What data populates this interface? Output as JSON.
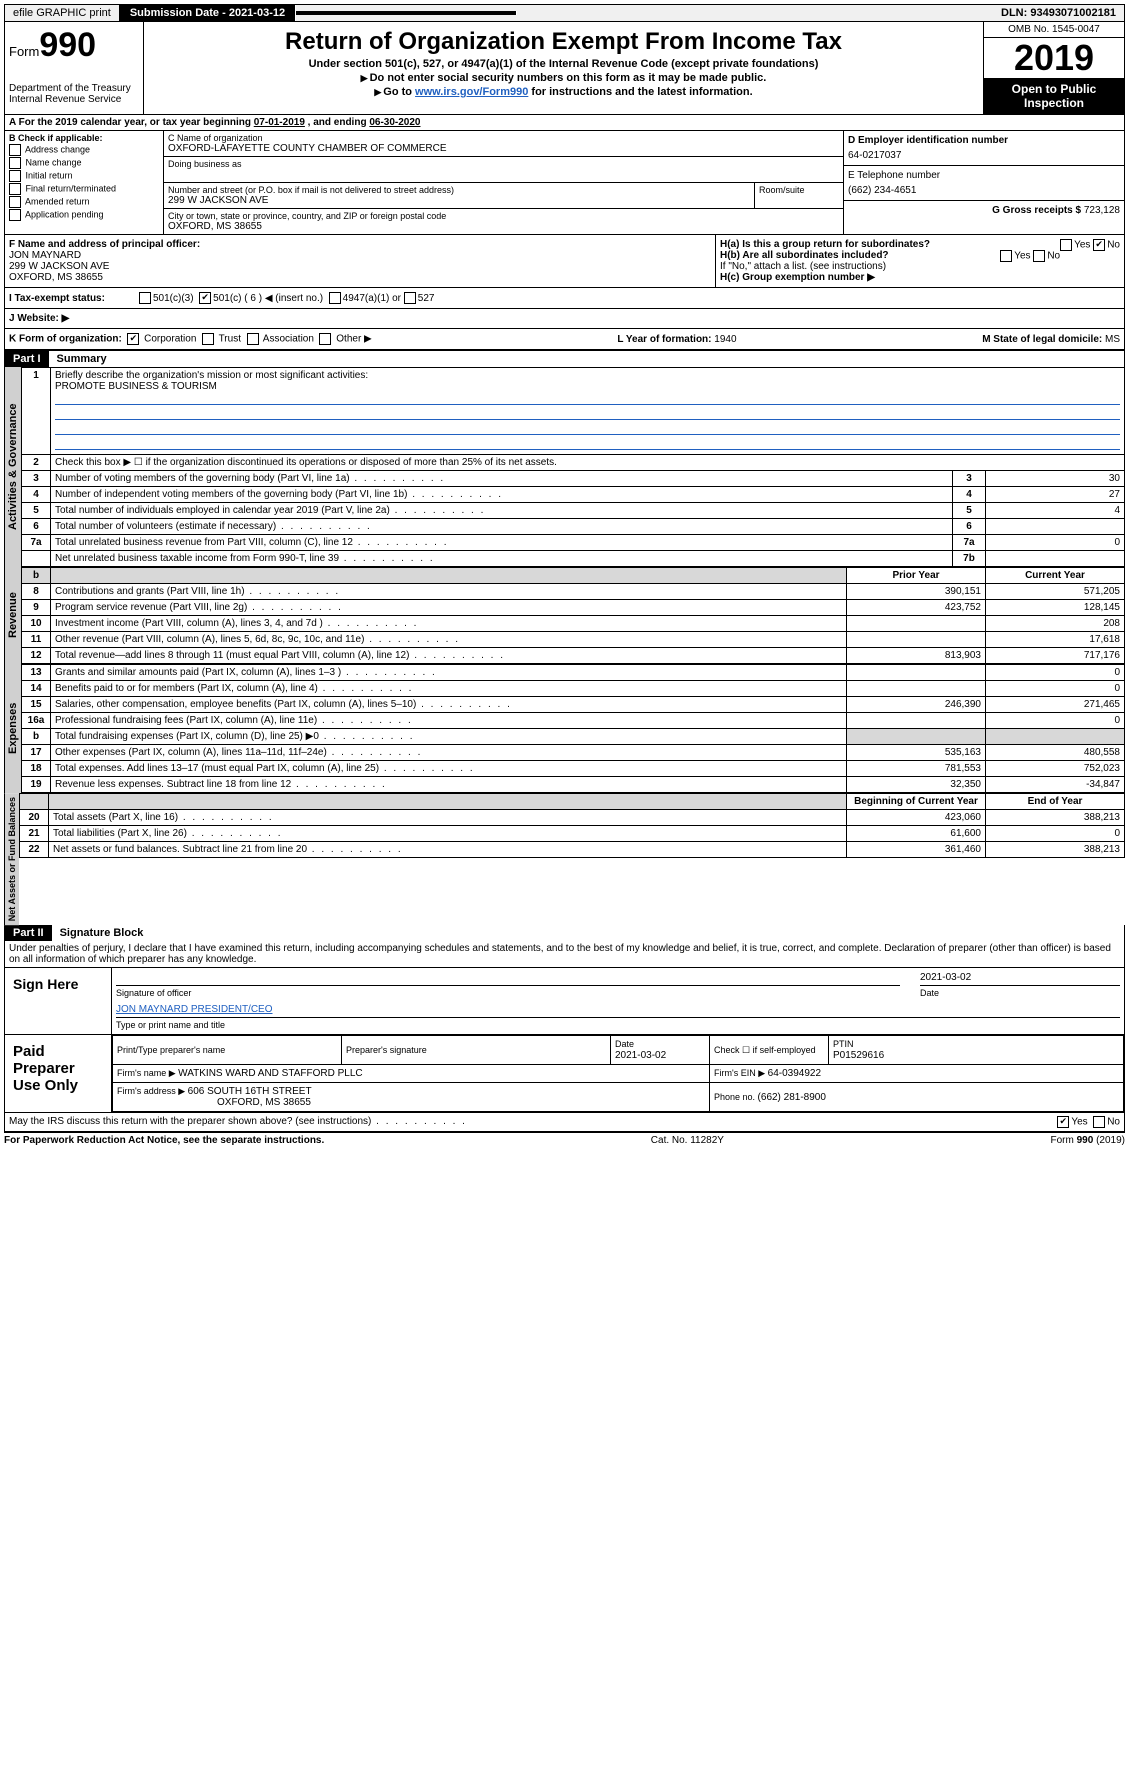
{
  "topbar": {
    "efile": "efile GRAPHIC print",
    "submission_label": "Submission Date - 2021-03-12",
    "dln": "DLN: 93493071002181"
  },
  "header": {
    "form_label": "Form",
    "form_number": "990",
    "title": "Return of Organization Exempt From Income Tax",
    "subtitle": "Under section 501(c), 527, or 4947(a)(1) of the Internal Revenue Code (except private foundations)",
    "warn1": "Do not enter social security numbers on this form as it may be made public.",
    "warn2_pre": "Go to ",
    "warn2_link": "www.irs.gov/Form990",
    "warn2_post": " for instructions and the latest information.",
    "dept": "Department of the Treasury",
    "irs": "Internal Revenue Service",
    "omb": "OMB No. 1545-0047",
    "year": "2019",
    "open": "Open to Public Inspection"
  },
  "period": {
    "label_a": "A For the 2019 calendar year, or tax year beginning ",
    "begin": "07-01-2019",
    "mid": " , and ending ",
    "end": "06-30-2020"
  },
  "block_b": {
    "title": "B Check if applicable:",
    "items": [
      "Address change",
      "Name change",
      "Initial return",
      "Final return/terminated",
      "Amended return",
      "Application pending"
    ]
  },
  "block_c": {
    "name_label": "C Name of organization",
    "name": "OXFORD-LAFAYETTE COUNTY CHAMBER OF COMMERCE",
    "dba_label": "Doing business as",
    "addr_label": "Number and street (or P.O. box if mail is not delivered to street address)",
    "room_label": "Room/suite",
    "addr": "299 W JACKSON AVE",
    "city_label": "City or town, state or province, country, and ZIP or foreign postal code",
    "city": "OXFORD, MS  38655"
  },
  "block_d": {
    "label": "D Employer identification number",
    "value": "64-0217037"
  },
  "block_e": {
    "label": "E Telephone number",
    "value": "(662) 234-4651"
  },
  "block_g": {
    "label": "G Gross receipts $ ",
    "value": "723,128"
  },
  "block_f": {
    "label": "F Name and address of principal officer:",
    "name": "JON MAYNARD",
    "addr": "299 W JACKSON AVE",
    "city": "OXFORD, MS  38655"
  },
  "block_h": {
    "ha": "H(a)  Is this a group return for subordinates?",
    "hb": "H(b)  Are all subordinates included?",
    "hb_note": "If \"No,\" attach a list. (see instructions)",
    "hc": "H(c)  Group exemption number ▶"
  },
  "tax_status": {
    "label": "I    Tax-exempt status:",
    "opt1": "501(c)(3)",
    "opt2": "501(c) ( 6 ) ◀ (insert no.)",
    "opt3": "4947(a)(1) or",
    "opt4": "527"
  },
  "website": {
    "label": "J    Website: ▶"
  },
  "row_k": {
    "k_label": "K Form of organization:",
    "k_corp": "Corporation",
    "k_trust": "Trust",
    "k_assoc": "Association",
    "k_other": "Other ▶",
    "l_label": "L Year of formation: ",
    "l_value": "1940",
    "m_label": "M State of legal domicile: ",
    "m_value": "MS"
  },
  "part1": {
    "header": "Part I",
    "title": "Summary",
    "line1_label": "Briefly describe the organization's mission or most significant activities:",
    "line1_value": "PROMOTE BUSINESS & TOURISM",
    "line2": "Check this box ▶ ☐  if the organization discontinued its operations or disposed of more than 25% of its net assets.",
    "lines_gov": [
      {
        "n": "3",
        "t": "Number of voting members of the governing body (Part VI, line 1a)",
        "b": "3",
        "v": "30"
      },
      {
        "n": "4",
        "t": "Number of independent voting members of the governing body (Part VI, line 1b)",
        "b": "4",
        "v": "27"
      },
      {
        "n": "5",
        "t": "Total number of individuals employed in calendar year 2019 (Part V, line 2a)",
        "b": "5",
        "v": "4"
      },
      {
        "n": "6",
        "t": "Total number of volunteers (estimate if necessary)",
        "b": "6",
        "v": ""
      },
      {
        "n": "7a",
        "t": "Total unrelated business revenue from Part VIII, column (C), line 12",
        "b": "7a",
        "v": "0"
      },
      {
        "n": "",
        "t": "Net unrelated business taxable income from Form 990-T, line 39",
        "b": "7b",
        "v": ""
      }
    ],
    "prior_label": "Prior Year",
    "current_label": "Current Year",
    "lines_rev": [
      {
        "n": "8",
        "t": "Contributions and grants (Part VIII, line 1h)",
        "p": "390,151",
        "c": "571,205"
      },
      {
        "n": "9",
        "t": "Program service revenue (Part VIII, line 2g)",
        "p": "423,752",
        "c": "128,145"
      },
      {
        "n": "10",
        "t": "Investment income (Part VIII, column (A), lines 3, 4, and 7d )",
        "p": "",
        "c": "208"
      },
      {
        "n": "11",
        "t": "Other revenue (Part VIII, column (A), lines 5, 6d, 8c, 9c, 10c, and 11e)",
        "p": "",
        "c": "17,618"
      },
      {
        "n": "12",
        "t": "Total revenue—add lines 8 through 11 (must equal Part VIII, column (A), line 12)",
        "p": "813,903",
        "c": "717,176"
      }
    ],
    "lines_exp": [
      {
        "n": "13",
        "t": "Grants and similar amounts paid (Part IX, column (A), lines 1–3 )",
        "p": "",
        "c": "0"
      },
      {
        "n": "14",
        "t": "Benefits paid to or for members (Part IX, column (A), line 4)",
        "p": "",
        "c": "0"
      },
      {
        "n": "15",
        "t": "Salaries, other compensation, employee benefits (Part IX, column (A), lines 5–10)",
        "p": "246,390",
        "c": "271,465"
      },
      {
        "n": "16a",
        "t": "Professional fundraising fees (Part IX, column (A), line 11e)",
        "p": "",
        "c": "0"
      },
      {
        "n": "b",
        "t": "Total fundraising expenses (Part IX, column (D), line 25) ▶0",
        "p": "shaded",
        "c": "shaded"
      },
      {
        "n": "17",
        "t": "Other expenses (Part IX, column (A), lines 11a–11d, 11f–24e)",
        "p": "535,163",
        "c": "480,558"
      },
      {
        "n": "18",
        "t": "Total expenses. Add lines 13–17 (must equal Part IX, column (A), line 25)",
        "p": "781,553",
        "c": "752,023"
      },
      {
        "n": "19",
        "t": "Revenue less expenses. Subtract line 18 from line 12",
        "p": "32,350",
        "c": "-34,847"
      }
    ],
    "begin_label": "Beginning of Current Year",
    "end_label": "End of Year",
    "lines_na": [
      {
        "n": "20",
        "t": "Total assets (Part X, line 16)",
        "p": "423,060",
        "c": "388,213"
      },
      {
        "n": "21",
        "t": "Total liabilities (Part X, line 26)",
        "p": "61,600",
        "c": "0"
      },
      {
        "n": "22",
        "t": "Net assets or fund balances. Subtract line 21 from line 20",
        "p": "361,460",
        "c": "388,213"
      }
    ]
  },
  "vtabs": {
    "gov": "Activities & Governance",
    "rev": "Revenue",
    "exp": "Expenses",
    "na": "Net Assets or Fund Balances"
  },
  "part2": {
    "header": "Part II",
    "title": "Signature Block",
    "perjury": "Under penalties of perjury, I declare that I have examined this return, including accompanying schedules and statements, and to the best of my knowledge and belief, it is true, correct, and complete. Declaration of preparer (other than officer) is based on all information of which preparer has any knowledge.",
    "sign_here": "Sign Here",
    "sig_officer": "Signature of officer",
    "date_val": "2021-03-02",
    "date_label": "Date",
    "officer_name": "JON MAYNARD PRESIDENT/CEO",
    "type_name": "Type or print name and title",
    "paid": "Paid Preparer Use Only",
    "pt_name_label": "Print/Type preparer's name",
    "pt_sig_label": "Preparer's signature",
    "pt_date_label": "Date",
    "pt_date": "2021-03-02",
    "pt_check": "Check ☐ if self-employed",
    "ptin_label": "PTIN",
    "ptin": "P01529616",
    "firm_name_label": "Firm's name    ▶ ",
    "firm_name": "WATKINS WARD AND STAFFORD PLLC",
    "firm_ein_label": "Firm's EIN ▶ ",
    "firm_ein": "64-0394922",
    "firm_addr_label": "Firm's address ▶ ",
    "firm_addr": "606 SOUTH 16TH STREET",
    "firm_city": "OXFORD, MS  38655",
    "phone_label": "Phone no. ",
    "phone": "(662) 281-8900",
    "discuss": "May the IRS discuss this return with the preparer shown above? (see instructions)"
  },
  "footer": {
    "paperwork": "For Paperwork Reduction Act Notice, see the separate instructions.",
    "cat": "Cat. No. 11282Y",
    "form": "Form 990 (2019)"
  }
}
